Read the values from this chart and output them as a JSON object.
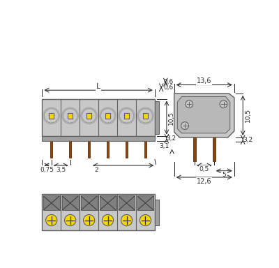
{
  "bg_color": "#ffffff",
  "gray_body": "#c8c8c8",
  "gray_dark": "#a0a0a0",
  "gray_outline": "#606060",
  "yellow_color": "#f5d800",
  "brown_pin": "#8B4513",
  "line_color": "#333333",
  "dim_color": "#222222",
  "n_poles": 6,
  "dim_L_label": "L",
  "dim_136": "13,6",
  "dim_06": "0,6",
  "dim_105": "10,5",
  "dim_32": "3,2",
  "dim_31": "3,1",
  "dim_05": "0,5",
  "dim_5": "5",
  "dim_126": "12,6",
  "dim_075": "0,75",
  "dim_35": "3,5",
  "dim_2": "2"
}
